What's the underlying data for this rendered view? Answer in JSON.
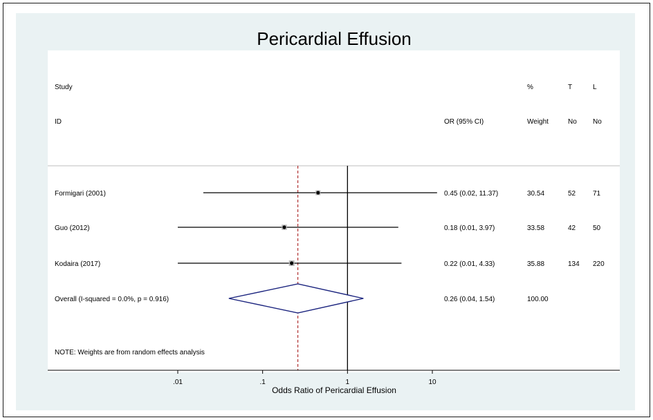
{
  "chart_data": {
    "type": "forest",
    "title": "Pericardial Effusion",
    "xlabel": "Odds Ratio of Pericardial Effusion",
    "x_scale": "log",
    "xlim": [
      0.01,
      10
    ],
    "x_ticks": [
      {
        "value": 0.01,
        "label": ".01"
      },
      {
        "value": 0.1,
        "label": ".1"
      },
      {
        "value": 1,
        "label": "1"
      },
      {
        "value": 10,
        "label": "10"
      }
    ],
    "null_line": 1,
    "pooled_estimate_line": 0.26,
    "colors": {
      "pooled_line": "#b03030",
      "diamond": "#1a237e",
      "box": "#b8b8b8",
      "background": "#eaf2f3"
    },
    "headers": {
      "study_1": "Study",
      "study_2": "ID",
      "or": "OR (95% CI)",
      "weight_1": "%",
      "weight_2": "Weight",
      "t_1": "T",
      "t_2": "No",
      "l_1": "L",
      "l_2": "No"
    },
    "studies": [
      {
        "label": "Formigari (2001)",
        "or": 0.45,
        "lower": 0.02,
        "upper": 11.37,
        "or_text": "0.45 (0.02, 11.37)",
        "weight": "30.54",
        "t_no": "52",
        "l_no": "71"
      },
      {
        "label": "Guo (2012)",
        "or": 0.18,
        "lower": 0.01,
        "upper": 3.97,
        "or_text": "0.18 (0.01, 3.97)",
        "weight": "33.58",
        "t_no": "42",
        "l_no": "50"
      },
      {
        "label": "Kodaira (2017)",
        "or": 0.22,
        "lower": 0.01,
        "upper": 4.33,
        "or_text": "0.22 (0.01, 4.33)",
        "weight": "35.88",
        "t_no": "134",
        "l_no": "220"
      }
    ],
    "overall": {
      "label": "Overall  (I-squared = 0.0%, p = 0.916)",
      "or": 0.26,
      "lower": 0.04,
      "upper": 1.54,
      "or_text": "0.26 (0.04, 1.54)",
      "weight": "100.00"
    },
    "note": "NOTE: Weights are from random effects analysis"
  }
}
